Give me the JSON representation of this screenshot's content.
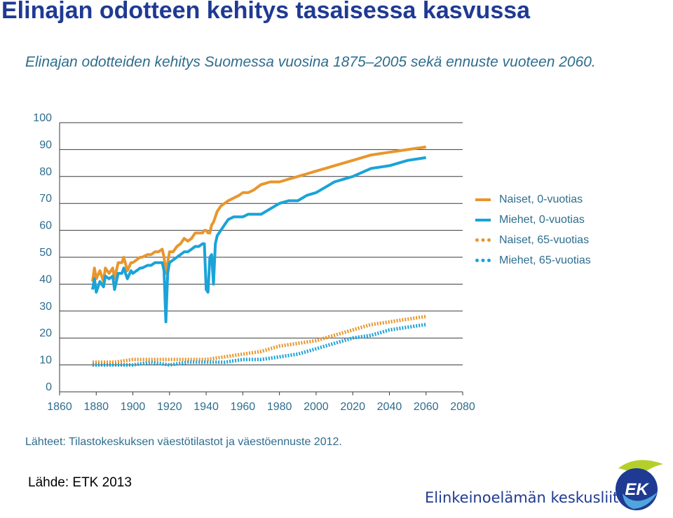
{
  "slide": {
    "title": "Elinajan odotteen kehitys tasaisessa kasvussa",
    "source": "Lähde: ETK 2013",
    "organization": "Elinkeinoelämän keskusliitto",
    "logo_text": "EK"
  },
  "chart_data": {
    "type": "line",
    "title": "Elinajan odotteiden kehitys Suomessa vuosina 1875–2005 sekä ennuste vuoteen 2060.",
    "source": "Lähteet: Tilastokeskuksen väestötilastot ja väestöennuste 2012.",
    "xlim": [
      1860,
      2080
    ],
    "ylim": [
      0,
      100
    ],
    "x_ticks": [
      1860,
      1880,
      1900,
      1920,
      1940,
      1960,
      1980,
      2000,
      2020,
      2040,
      2060,
      2080
    ],
    "y_ticks": [
      0,
      10,
      20,
      30,
      40,
      50,
      60,
      70,
      80,
      90,
      100
    ],
    "grid": "horizontal",
    "legend_position": "right",
    "series": [
      {
        "name": "Naiset, 0-vuotias",
        "color": "#e8962d",
        "style": "solid",
        "x": [
          1878,
          1879,
          1880,
          1882,
          1884,
          1885,
          1887,
          1889,
          1890,
          1892,
          1894,
          1895,
          1897,
          1899,
          1900,
          1902,
          1904,
          1905,
          1908,
          1910,
          1912,
          1914,
          1916,
          1917,
          1918,
          1919,
          1920,
          1922,
          1924,
          1926,
          1928,
          1930,
          1932,
          1934,
          1936,
          1938,
          1939,
          1940,
          1941,
          1942,
          1943,
          1944,
          1945,
          1946,
          1948,
          1950,
          1952,
          1955,
          1958,
          1960,
          1963,
          1966,
          1970,
          1975,
          1980,
          1985,
          1990,
          1995,
          2000,
          2005,
          2010,
          2020,
          2030,
          2040,
          2050,
          2060
        ],
        "y": [
          41,
          46,
          42,
          45,
          41,
          46,
          44,
          46,
          42,
          48,
          48,
          50,
          45,
          48,
          48,
          49,
          50,
          50,
          51,
          51,
          52,
          52,
          53,
          50,
          44,
          48,
          52,
          52,
          54,
          55,
          57,
          56,
          57,
          59,
          59,
          59,
          60,
          60,
          59,
          59,
          62,
          63,
          65,
          67,
          69,
          70,
          71,
          72,
          73,
          74,
          74,
          75,
          77,
          78,
          78,
          79,
          80,
          81,
          82,
          83,
          84,
          86,
          88,
          89,
          90,
          91
        ]
      },
      {
        "name": "Miehet, 0-vuotias",
        "color": "#1aa3d9",
        "style": "solid",
        "x": [
          1878,
          1879,
          1880,
          1882,
          1884,
          1885,
          1887,
          1889,
          1890,
          1892,
          1894,
          1895,
          1897,
          1899,
          1900,
          1902,
          1904,
          1905,
          1908,
          1910,
          1912,
          1914,
          1916,
          1917,
          1918,
          1919,
          1920,
          1922,
          1924,
          1926,
          1928,
          1930,
          1932,
          1934,
          1936,
          1938,
          1939,
          1940,
          1941,
          1942,
          1943,
          1944,
          1945,
          1946,
          1948,
          1950,
          1952,
          1955,
          1958,
          1960,
          1963,
          1966,
          1970,
          1975,
          1980,
          1985,
          1990,
          1995,
          2000,
          2005,
          2010,
          2020,
          2030,
          2040,
          2050,
          2060
        ],
        "y": [
          38,
          42,
          37,
          41,
          39,
          43,
          42,
          43,
          38,
          44,
          44,
          46,
          42,
          45,
          44,
          45,
          46,
          46,
          47,
          47,
          48,
          48,
          48,
          45,
          26,
          44,
          48,
          49,
          50,
          51,
          52,
          52,
          53,
          54,
          54,
          55,
          55,
          38,
          37,
          50,
          51,
          40,
          55,
          58,
          60,
          62,
          64,
          65,
          65,
          65,
          66,
          66,
          66,
          68,
          70,
          71,
          71,
          73,
          74,
          76,
          78,
          80,
          83,
          84,
          86,
          87
        ]
      },
      {
        "name": "Naiset, 65-vuotias",
        "color": "#e8962d",
        "style": "dotted",
        "x": [
          1878,
          1890,
          1900,
          1910,
          1920,
          1930,
          1940,
          1950,
          1960,
          1970,
          1980,
          1990,
          2000,
          2005,
          2010,
          2020,
          2030,
          2040,
          2050,
          2060
        ],
        "y": [
          11,
          11,
          12,
          12,
          12,
          12,
          12,
          13,
          14,
          15,
          17,
          18,
          19,
          20,
          21,
          23,
          25,
          26,
          27,
          28
        ]
      },
      {
        "name": "Miehet, 65-vuotias",
        "color": "#1aa3d9",
        "style": "dotted",
        "x": [
          1878,
          1890,
          1900,
          1910,
          1920,
          1930,
          1940,
          1950,
          1960,
          1970,
          1980,
          1990,
          2000,
          2005,
          2010,
          2020,
          2030,
          2040,
          2050,
          2060
        ],
        "y": [
          10,
          10,
          10,
          11,
          10,
          11,
          11,
          11,
          12,
          12,
          13,
          14,
          16,
          17,
          18,
          20,
          21,
          23,
          24,
          25
        ]
      }
    ]
  }
}
